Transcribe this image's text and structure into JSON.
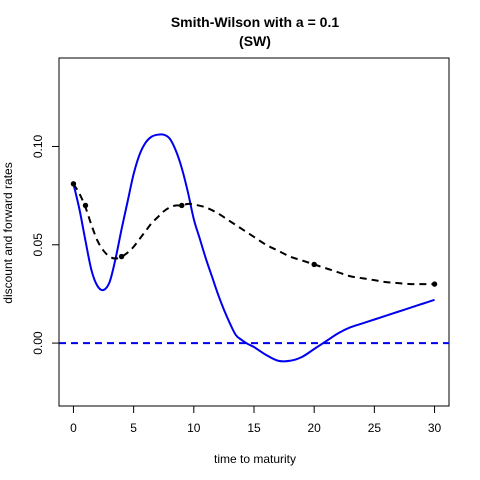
{
  "chart_data": {
    "type": "line",
    "title": "Smith-Wilson with a = 0.1",
    "subtitle": "(SW)",
    "xlabel": "time to maturity",
    "ylabel": "discount and forward rates",
    "xlim": [
      -1.2,
      31.2
    ],
    "ylim": [
      -0.032,
      0.145
    ],
    "xticks": [
      0,
      5,
      10,
      15,
      20,
      25,
      30
    ],
    "yticks": [
      0.0,
      0.05,
      0.1
    ],
    "ytick_labels": [
      "0.00",
      "0.05",
      "0.10"
    ],
    "grid": false,
    "legend": "none",
    "series": [
      {
        "color": "#0000ee",
        "style": "solid",
        "x": [
          0,
          0.5,
          1,
          1.5,
          2,
          2.5,
          3,
          3.5,
          4,
          4.5,
          5,
          5.5,
          6,
          6.5,
          7,
          7.5,
          8,
          8.5,
          9,
          9.5,
          10,
          10.5,
          11,
          11.5,
          12,
          12.5,
          13,
          13.5,
          14,
          14.5,
          15,
          16,
          17,
          18,
          19,
          20,
          21,
          22,
          23,
          24,
          25,
          26,
          27,
          28,
          29,
          30
        ],
        "y": [
          0.081,
          0.068,
          0.052,
          0.037,
          0.029,
          0.027,
          0.031,
          0.043,
          0.058,
          0.072,
          0.086,
          0.096,
          0.102,
          0.105,
          0.106,
          0.106,
          0.104,
          0.098,
          0.089,
          0.077,
          0.063,
          0.053,
          0.043,
          0.034,
          0.025,
          0.017,
          0.01,
          0.004,
          0.0015,
          -0.0005,
          -0.002,
          -0.006,
          -0.009,
          -0.009,
          -0.007,
          -0.003,
          0.001,
          0.005,
          0.008,
          0.01,
          0.012,
          0.014,
          0.016,
          0.018,
          0.02,
          0.022
        ]
      },
      {
        "color": "#000000",
        "style": "dashed",
        "x": [
          0,
          0.5,
          1,
          1.5,
          2,
          2.5,
          3,
          3.5,
          4,
          4.5,
          5,
          5.5,
          6,
          6.5,
          7,
          7.5,
          8,
          8.5,
          9,
          9.5,
          10,
          11,
          12,
          13,
          14,
          15,
          16,
          17,
          18,
          19,
          20,
          21,
          22,
          23,
          24,
          25,
          26,
          27,
          28,
          29,
          30
        ],
        "y": [
          0.081,
          0.076,
          0.069,
          0.06,
          0.052,
          0.047,
          0.044,
          0.043,
          0.044,
          0.046,
          0.049,
          0.053,
          0.057,
          0.061,
          0.064,
          0.067,
          0.069,
          0.07,
          0.07,
          0.0708,
          0.0705,
          0.069,
          0.066,
          0.062,
          0.058,
          0.054,
          0.05,
          0.047,
          0.044,
          0.042,
          0.04,
          0.038,
          0.036,
          0.034,
          0.033,
          0.032,
          0.031,
          0.0305,
          0.03,
          0.03,
          0.03
        ]
      },
      {
        "color": "#0000ee",
        "style": "dashed",
        "x": [
          -1.2,
          31.2
        ],
        "y": [
          0.0,
          0.0
        ]
      }
    ],
    "points": {
      "color": "#000000",
      "x": [
        0,
        1,
        4,
        9,
        20,
        30
      ],
      "y": [
        0.081,
        0.07,
        0.044,
        0.07,
        0.04,
        0.03
      ]
    }
  }
}
